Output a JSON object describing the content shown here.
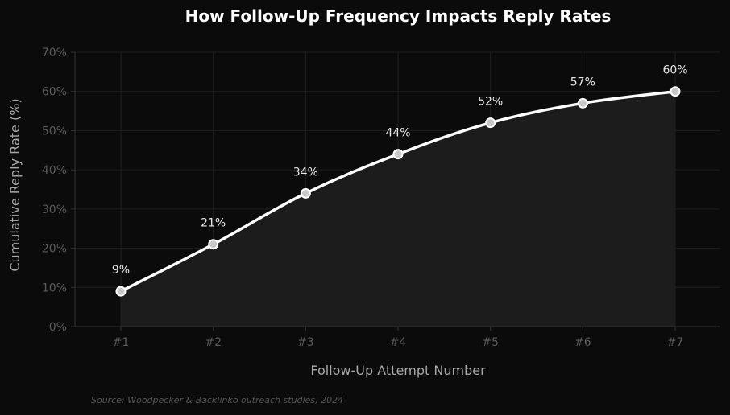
{
  "chart_data": {
    "type": "line",
    "title": "How Follow-Up Frequency Impacts Reply Rates",
    "xlabel": "Follow-Up Attempt Number",
    "ylabel": "Cumulative Reply Rate (%)",
    "categories": [
      "#1",
      "#2",
      "#3",
      "#4",
      "#5",
      "#6",
      "#7"
    ],
    "series": [
      {
        "values": [
          9,
          21,
          34,
          44,
          52,
          57,
          60
        ],
        "labels": [
          "9%",
          "21%",
          "34%",
          "44%",
          "52%",
          "57%",
          "60%"
        ]
      }
    ],
    "ylim": [
      0,
      70
    ],
    "yticks": [
      0,
      10,
      20,
      30,
      40,
      50,
      60,
      70
    ],
    "ytick_labels": [
      "0%",
      "10%",
      "20%",
      "30%",
      "40%",
      "50%",
      "60%",
      "70%"
    ],
    "grid": true,
    "fill_under": true,
    "source": "Source: Woodpecker & Backlinko outreach studies, 2024",
    "colors": {
      "background": "#0b0b0b",
      "line": "#ffffff",
      "marker": "#c8c8c8",
      "fill": "#1c1c1c",
      "grid": "#1f1f1f"
    }
  }
}
